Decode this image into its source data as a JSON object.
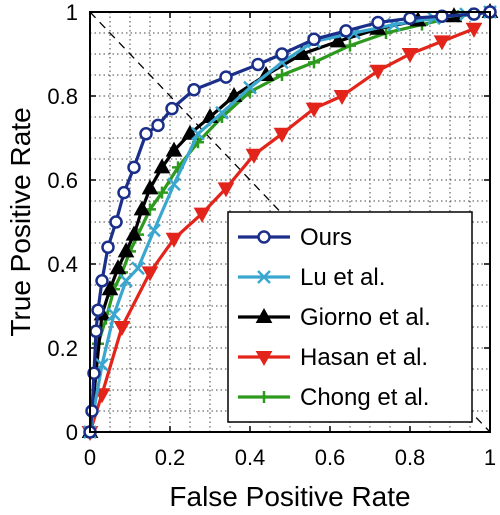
{
  "chart_data": {
    "type": "line",
    "title": "",
    "xlabel": "False Positive Rate",
    "ylabel": "True Positive Rate",
    "xlim": [
      0,
      1
    ],
    "ylim": [
      0,
      1
    ],
    "x_ticks": [
      "0",
      "0.2",
      "0.4",
      "0.6",
      "0.8",
      "1"
    ],
    "y_ticks": [
      "0",
      "0.2",
      "0.4",
      "0.6",
      "0.8",
      "1"
    ],
    "grid": "dotted, 0.05 steps",
    "chance_line": true,
    "legend_position": "bottom-right",
    "series": [
      {
        "name": "Ours",
        "color": "#1b2f8a",
        "marker": "circle-open",
        "x": [
          0,
          0.005,
          0.01,
          0.015,
          0.02,
          0.03,
          0.045,
          0.065,
          0.085,
          0.11,
          0.14,
          0.17,
          0.205,
          0.26,
          0.34,
          0.42,
          0.48,
          0.56,
          0.64,
          0.72,
          0.8,
          0.88,
          0.96,
          1.0
        ],
        "y": [
          0,
          0.05,
          0.14,
          0.24,
          0.29,
          0.36,
          0.44,
          0.5,
          0.57,
          0.63,
          0.71,
          0.73,
          0.77,
          0.815,
          0.845,
          0.875,
          0.9,
          0.935,
          0.955,
          0.975,
          0.985,
          0.99,
          0.995,
          1.0
        ]
      },
      {
        "name": "Lu et al.",
        "color": "#3ba7cf",
        "marker": "x",
        "x": [
          0,
          0.03,
          0.06,
          0.09,
          0.12,
          0.16,
          0.21,
          0.27,
          0.33,
          0.4,
          0.48,
          0.56,
          0.66,
          0.76,
          0.86,
          0.94,
          1.0
        ],
        "y": [
          0,
          0.16,
          0.28,
          0.36,
          0.39,
          0.48,
          0.59,
          0.71,
          0.76,
          0.82,
          0.88,
          0.93,
          0.95,
          0.97,
          0.985,
          0.995,
          1.0
        ]
      },
      {
        "name": "Giorno et al.",
        "color": "#000000",
        "marker": "triangle-up",
        "x": [
          0,
          0.03,
          0.05,
          0.07,
          0.09,
          0.11,
          0.13,
          0.15,
          0.18,
          0.21,
          0.25,
          0.3,
          0.36,
          0.44,
          0.53,
          0.62,
          0.72,
          0.82,
          0.91,
          1.0
        ],
        "y": [
          0,
          0.28,
          0.34,
          0.39,
          0.43,
          0.47,
          0.53,
          0.58,
          0.63,
          0.67,
          0.71,
          0.75,
          0.8,
          0.85,
          0.9,
          0.93,
          0.96,
          0.98,
          0.99,
          1.0
        ]
      },
      {
        "name": "Hasan et al.",
        "color": "#e3241b",
        "marker": "triangle-down",
        "x": [
          0,
          0.03,
          0.08,
          0.15,
          0.21,
          0.28,
          0.34,
          0.41,
          0.48,
          0.56,
          0.63,
          0.72,
          0.8,
          0.88,
          0.96
        ],
        "y": [
          0,
          0.09,
          0.25,
          0.38,
          0.46,
          0.52,
          0.58,
          0.66,
          0.71,
          0.77,
          0.8,
          0.86,
          0.9,
          0.93,
          0.96
        ]
      },
      {
        "name": "Chong et al.",
        "color": "#2d9a1e",
        "marker": "plus",
        "x": [
          0,
          0.02,
          0.04,
          0.06,
          0.08,
          0.1,
          0.12,
          0.15,
          0.18,
          0.22,
          0.27,
          0.33,
          0.4,
          0.48,
          0.56,
          0.65,
          0.74,
          0.83,
          0.92,
          1.0
        ],
        "y": [
          0,
          0.21,
          0.27,
          0.34,
          0.38,
          0.43,
          0.47,
          0.53,
          0.57,
          0.63,
          0.69,
          0.75,
          0.81,
          0.85,
          0.88,
          0.92,
          0.95,
          0.97,
          0.99,
          1.0
        ]
      }
    ]
  }
}
